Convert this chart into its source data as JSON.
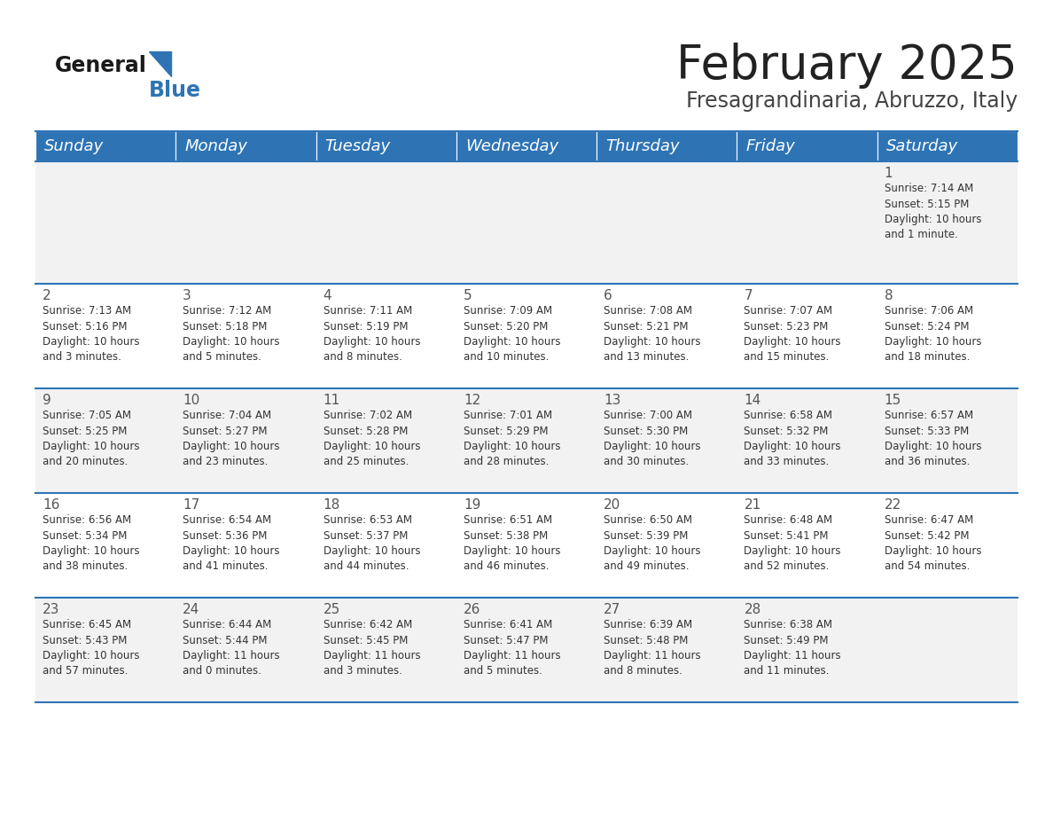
{
  "title": "February 2025",
  "subtitle": "Fresagrandinaria, Abruzzo, Italy",
  "header_bg": "#2e74b5",
  "header_text": "#ffffff",
  "day_names": [
    "Sunday",
    "Monday",
    "Tuesday",
    "Wednesday",
    "Thursday",
    "Friday",
    "Saturday"
  ],
  "row_bg_even": "#f2f2f2",
  "row_bg_odd": "#ffffff",
  "divider_color": "#2e74b5",
  "text_color": "#333333",
  "day_num_color": "#555555",
  "calendar": [
    [
      {
        "day": null,
        "info": ""
      },
      {
        "day": null,
        "info": ""
      },
      {
        "day": null,
        "info": ""
      },
      {
        "day": null,
        "info": ""
      },
      {
        "day": null,
        "info": ""
      },
      {
        "day": null,
        "info": ""
      },
      {
        "day": 1,
        "info": "Sunrise: 7:14 AM\nSunset: 5:15 PM\nDaylight: 10 hours\nand 1 minute."
      }
    ],
    [
      {
        "day": 2,
        "info": "Sunrise: 7:13 AM\nSunset: 5:16 PM\nDaylight: 10 hours\nand 3 minutes."
      },
      {
        "day": 3,
        "info": "Sunrise: 7:12 AM\nSunset: 5:18 PM\nDaylight: 10 hours\nand 5 minutes."
      },
      {
        "day": 4,
        "info": "Sunrise: 7:11 AM\nSunset: 5:19 PM\nDaylight: 10 hours\nand 8 minutes."
      },
      {
        "day": 5,
        "info": "Sunrise: 7:09 AM\nSunset: 5:20 PM\nDaylight: 10 hours\nand 10 minutes."
      },
      {
        "day": 6,
        "info": "Sunrise: 7:08 AM\nSunset: 5:21 PM\nDaylight: 10 hours\nand 13 minutes."
      },
      {
        "day": 7,
        "info": "Sunrise: 7:07 AM\nSunset: 5:23 PM\nDaylight: 10 hours\nand 15 minutes."
      },
      {
        "day": 8,
        "info": "Sunrise: 7:06 AM\nSunset: 5:24 PM\nDaylight: 10 hours\nand 18 minutes."
      }
    ],
    [
      {
        "day": 9,
        "info": "Sunrise: 7:05 AM\nSunset: 5:25 PM\nDaylight: 10 hours\nand 20 minutes."
      },
      {
        "day": 10,
        "info": "Sunrise: 7:04 AM\nSunset: 5:27 PM\nDaylight: 10 hours\nand 23 minutes."
      },
      {
        "day": 11,
        "info": "Sunrise: 7:02 AM\nSunset: 5:28 PM\nDaylight: 10 hours\nand 25 minutes."
      },
      {
        "day": 12,
        "info": "Sunrise: 7:01 AM\nSunset: 5:29 PM\nDaylight: 10 hours\nand 28 minutes."
      },
      {
        "day": 13,
        "info": "Sunrise: 7:00 AM\nSunset: 5:30 PM\nDaylight: 10 hours\nand 30 minutes."
      },
      {
        "day": 14,
        "info": "Sunrise: 6:58 AM\nSunset: 5:32 PM\nDaylight: 10 hours\nand 33 minutes."
      },
      {
        "day": 15,
        "info": "Sunrise: 6:57 AM\nSunset: 5:33 PM\nDaylight: 10 hours\nand 36 minutes."
      }
    ],
    [
      {
        "day": 16,
        "info": "Sunrise: 6:56 AM\nSunset: 5:34 PM\nDaylight: 10 hours\nand 38 minutes."
      },
      {
        "day": 17,
        "info": "Sunrise: 6:54 AM\nSunset: 5:36 PM\nDaylight: 10 hours\nand 41 minutes."
      },
      {
        "day": 18,
        "info": "Sunrise: 6:53 AM\nSunset: 5:37 PM\nDaylight: 10 hours\nand 44 minutes."
      },
      {
        "day": 19,
        "info": "Sunrise: 6:51 AM\nSunset: 5:38 PM\nDaylight: 10 hours\nand 46 minutes."
      },
      {
        "day": 20,
        "info": "Sunrise: 6:50 AM\nSunset: 5:39 PM\nDaylight: 10 hours\nand 49 minutes."
      },
      {
        "day": 21,
        "info": "Sunrise: 6:48 AM\nSunset: 5:41 PM\nDaylight: 10 hours\nand 52 minutes."
      },
      {
        "day": 22,
        "info": "Sunrise: 6:47 AM\nSunset: 5:42 PM\nDaylight: 10 hours\nand 54 minutes."
      }
    ],
    [
      {
        "day": 23,
        "info": "Sunrise: 6:45 AM\nSunset: 5:43 PM\nDaylight: 10 hours\nand 57 minutes."
      },
      {
        "day": 24,
        "info": "Sunrise: 6:44 AM\nSunset: 5:44 PM\nDaylight: 11 hours\nand 0 minutes."
      },
      {
        "day": 25,
        "info": "Sunrise: 6:42 AM\nSunset: 5:45 PM\nDaylight: 11 hours\nand 3 minutes."
      },
      {
        "day": 26,
        "info": "Sunrise: 6:41 AM\nSunset: 5:47 PM\nDaylight: 11 hours\nand 5 minutes."
      },
      {
        "day": 27,
        "info": "Sunrise: 6:39 AM\nSunset: 5:48 PM\nDaylight: 11 hours\nand 8 minutes."
      },
      {
        "day": 28,
        "info": "Sunrise: 6:38 AM\nSunset: 5:49 PM\nDaylight: 11 hours\nand 11 minutes."
      },
      {
        "day": null,
        "info": ""
      }
    ]
  ],
  "title_fontsize": 38,
  "subtitle_fontsize": 17,
  "header_fontsize": 13,
  "day_num_fontsize": 11,
  "info_fontsize": 8.5,
  "logo_general_fontsize": 17,
  "logo_blue_fontsize": 17
}
